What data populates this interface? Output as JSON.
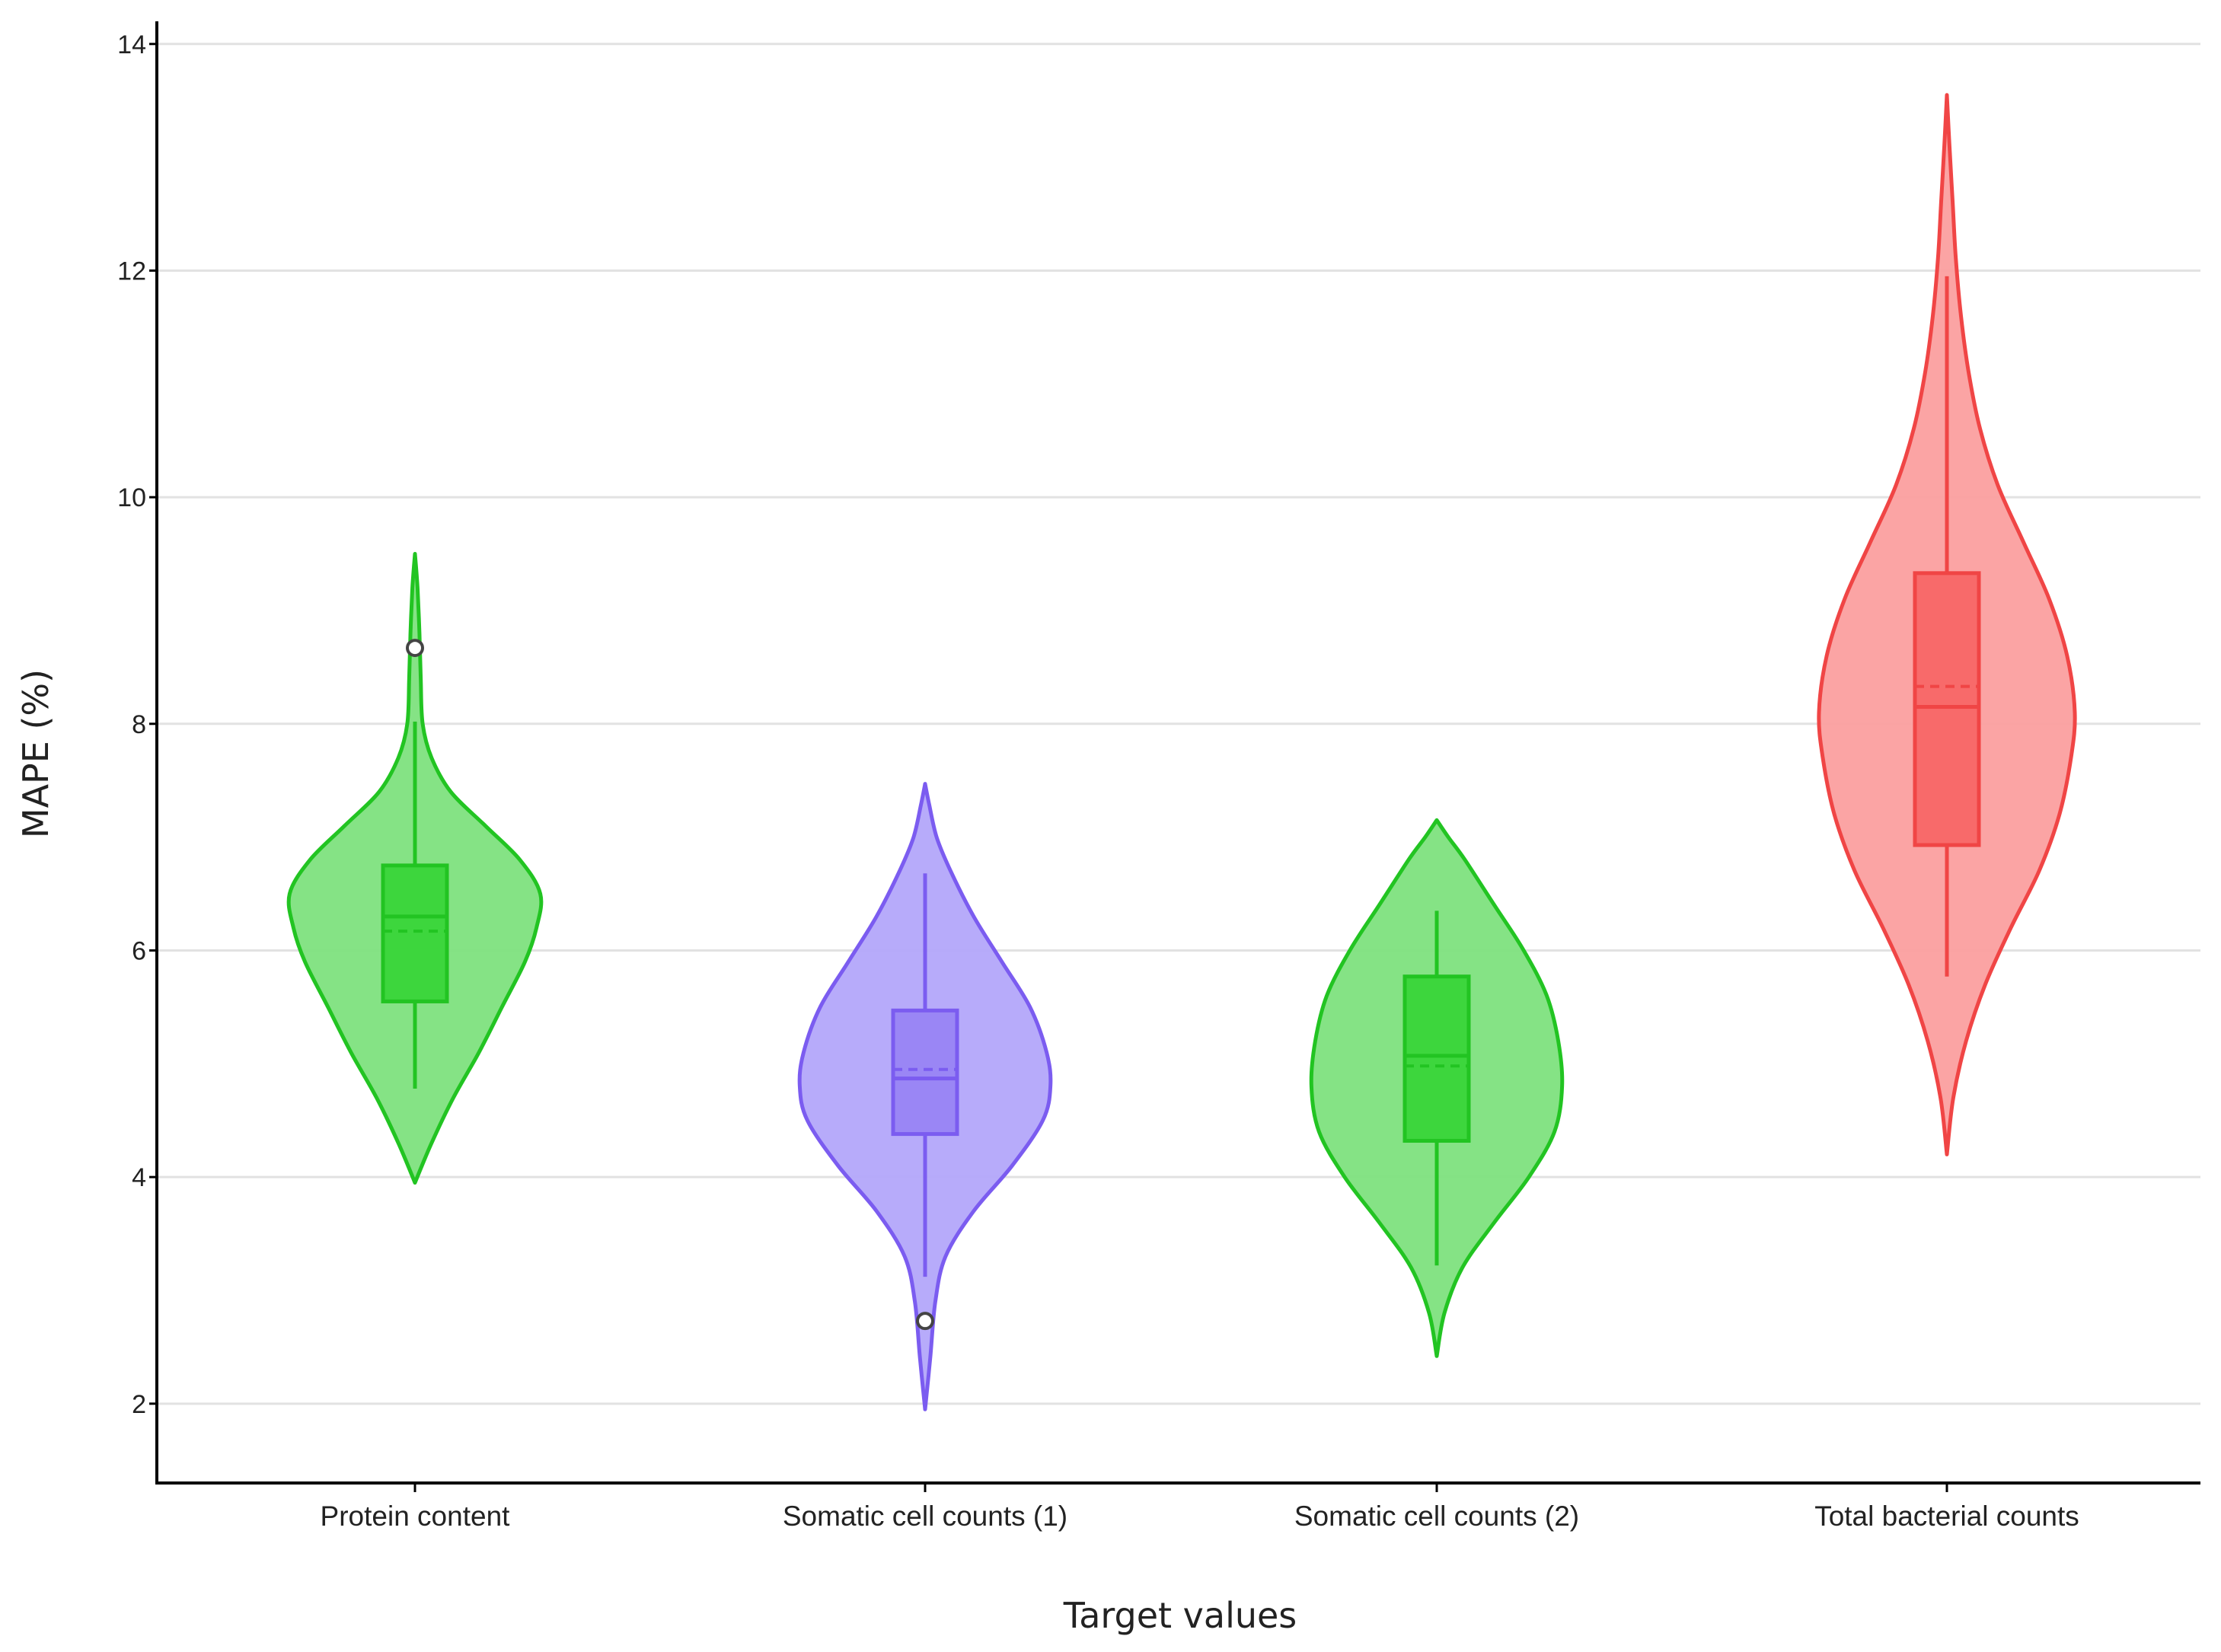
{
  "chart_data": {
    "type": "violin",
    "title": "",
    "xlabel": "Target values",
    "ylabel": "MAPE (%)",
    "ylim": [
      1.3,
      14.2
    ],
    "yticks": [
      2,
      4,
      6,
      8,
      10,
      12,
      14
    ],
    "grid": true,
    "categories": [
      "Protein content",
      "Somatic cell counts (1)",
      "Somatic cell counts (2)",
      "Total bacterial counts"
    ],
    "series": [
      {
        "name": "Protein content",
        "color": "#22c422",
        "fill": "#7ee27e",
        "box_fill": "#3dd63d",
        "range": [
          3.95,
          9.5
        ],
        "whisker_low": 4.78,
        "q1": 5.55,
        "median": 6.3,
        "mean": 6.17,
        "q3": 6.75,
        "whisker_high": 8.02,
        "outliers": [
          8.67
        ],
        "density": [
          [
            3.95,
            0.0
          ],
          [
            4.3,
            0.13
          ],
          [
            4.7,
            0.3
          ],
          [
            5.1,
            0.5
          ],
          [
            5.5,
            0.68
          ],
          [
            5.9,
            0.86
          ],
          [
            6.2,
            0.95
          ],
          [
            6.5,
            0.98
          ],
          [
            6.8,
            0.82
          ],
          [
            7.1,
            0.55
          ],
          [
            7.4,
            0.28
          ],
          [
            7.7,
            0.13
          ],
          [
            8.0,
            0.06
          ],
          [
            8.4,
            0.045
          ],
          [
            8.8,
            0.035
          ],
          [
            9.2,
            0.02
          ],
          [
            9.5,
            0.0
          ]
        ]
      },
      {
        "name": "Somatic cell counts (1)",
        "color": "#7b5cf0",
        "fill": "#b3a7fa",
        "box_fill": "#9a86f5",
        "range": [
          1.95,
          7.47
        ],
        "whisker_low": 3.12,
        "q1": 4.38,
        "median": 4.87,
        "mean": 4.95,
        "q3": 5.47,
        "whisker_high": 6.68,
        "outliers": [
          2.73
        ],
        "density": [
          [
            1.95,
            0.0
          ],
          [
            2.4,
            0.04
          ],
          [
            2.9,
            0.08
          ],
          [
            3.3,
            0.16
          ],
          [
            3.7,
            0.38
          ],
          [
            4.1,
            0.68
          ],
          [
            4.5,
            0.92
          ],
          [
            4.8,
            0.98
          ],
          [
            5.1,
            0.95
          ],
          [
            5.5,
            0.82
          ],
          [
            5.9,
            0.6
          ],
          [
            6.3,
            0.38
          ],
          [
            6.7,
            0.2
          ],
          [
            7.0,
            0.09
          ],
          [
            7.3,
            0.03
          ],
          [
            7.47,
            0.0
          ]
        ]
      },
      {
        "name": "Somatic cell counts (2)",
        "color": "#22c422",
        "fill": "#7ee27e",
        "box_fill": "#3dd63d",
        "range": [
          2.42,
          7.15
        ],
        "whisker_low": 3.22,
        "q1": 4.32,
        "median": 5.07,
        "mean": 4.98,
        "q3": 5.77,
        "whisker_high": 6.35,
        "outliers": [],
        "density": [
          [
            2.42,
            0.0
          ],
          [
            2.8,
            0.06
          ],
          [
            3.2,
            0.2
          ],
          [
            3.6,
            0.45
          ],
          [
            4.0,
            0.72
          ],
          [
            4.4,
            0.92
          ],
          [
            4.8,
            0.98
          ],
          [
            5.2,
            0.95
          ],
          [
            5.6,
            0.86
          ],
          [
            6.0,
            0.68
          ],
          [
            6.4,
            0.45
          ],
          [
            6.8,
            0.22
          ],
          [
            7.0,
            0.09
          ],
          [
            7.15,
            0.0
          ]
        ]
      },
      {
        "name": "Total bacterial counts",
        "color": "#f04545",
        "fill": "#fb9f9f",
        "box_fill": "#f86a6a",
        "range": [
          4.2,
          13.55
        ],
        "whisker_low": 5.77,
        "q1": 6.93,
        "median": 8.15,
        "mean": 8.33,
        "q3": 9.33,
        "whisker_high": 11.95,
        "outliers": [],
        "density": [
          [
            4.2,
            0.0
          ],
          [
            4.7,
            0.05
          ],
          [
            5.2,
            0.15
          ],
          [
            5.7,
            0.3
          ],
          [
            6.2,
            0.5
          ],
          [
            6.7,
            0.72
          ],
          [
            7.2,
            0.88
          ],
          [
            7.7,
            0.97
          ],
          [
            8.1,
            1.0
          ],
          [
            8.6,
            0.94
          ],
          [
            9.1,
            0.8
          ],
          [
            9.6,
            0.6
          ],
          [
            10.1,
            0.4
          ],
          [
            10.6,
            0.26
          ],
          [
            11.1,
            0.17
          ],
          [
            11.6,
            0.11
          ],
          [
            12.1,
            0.07
          ],
          [
            12.6,
            0.045
          ],
          [
            13.1,
            0.02
          ],
          [
            13.55,
            0.0
          ]
        ]
      }
    ]
  }
}
